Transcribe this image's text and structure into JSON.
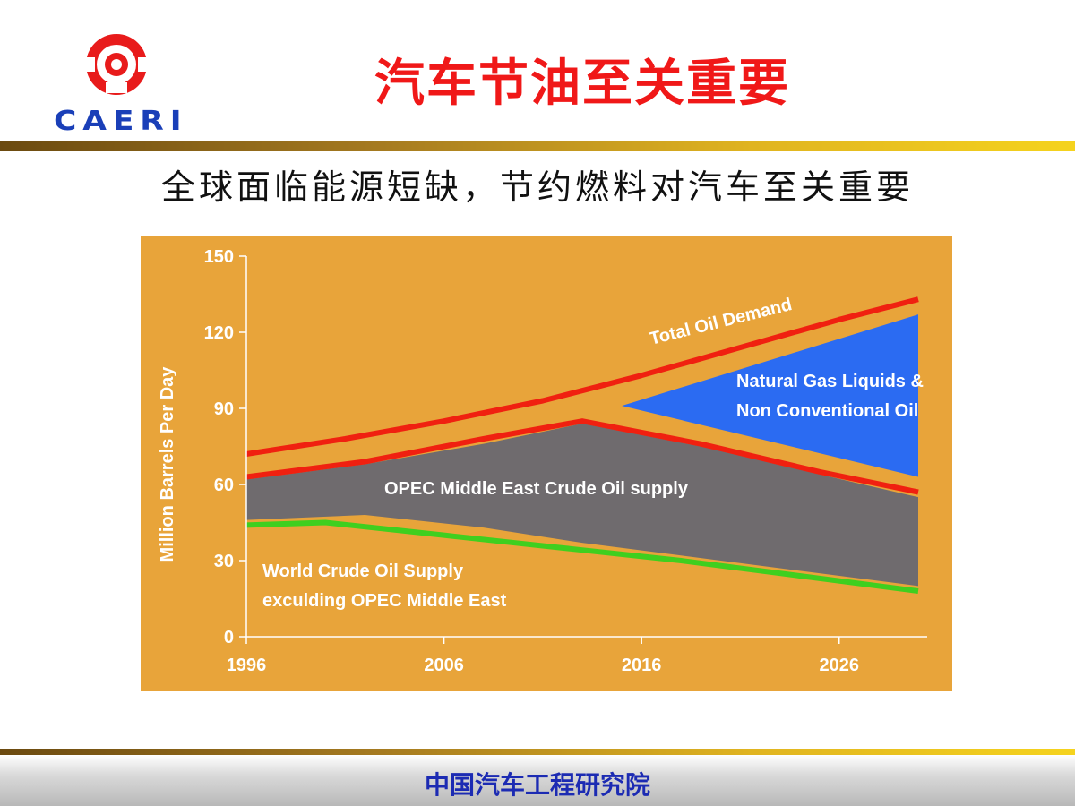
{
  "header": {
    "logo_text": "CAERI",
    "title": "汽车节油至关重要"
  },
  "subtitle": "全球面临能源短缺，节约燃料对汽车至关重要",
  "footer": {
    "org_name": "中国汽车工程研究院"
  },
  "colors": {
    "title_red": "#f01818",
    "logo_blue": "#1a3fb8",
    "chart_background": "#e8a43a",
    "demand_line": "#f02010",
    "opec_area": "#6f6b6e",
    "ngl_area": "#2b6bf2",
    "world_supply_line": "#3fcf1f"
  },
  "chart_data": {
    "type": "area",
    "title": "",
    "xlabel": "",
    "ylabel": "Million Barrels Per Day",
    "xlim": [
      1996,
      2030
    ],
    "ylim": [
      0,
      150
    ],
    "x_ticks": [
      1996,
      2006,
      2016,
      2026
    ],
    "y_ticks": [
      0,
      30,
      60,
      90,
      120,
      150
    ],
    "grid": false,
    "series": [
      {
        "name": "Total Oil Demand",
        "kind": "line",
        "x": [
          1996,
          2001,
          2006,
          2011,
          2016,
          2021,
          2026,
          2030
        ],
        "values": [
          72,
          78,
          85,
          93,
          103,
          114,
          125,
          133
        ]
      },
      {
        "name": "Upper OPEC boundary",
        "kind": "line",
        "x": [
          1996,
          2002,
          2008,
          2013,
          2019,
          2025,
          2030
        ],
        "values": [
          63,
          69,
          78,
          85,
          76,
          65,
          57
        ]
      },
      {
        "name": "World Crude Oil Supply exculding OPEC Middle East",
        "kind": "line",
        "x": [
          1996,
          2000,
          2006,
          2012,
          2018,
          2024,
          2030
        ],
        "values": [
          44,
          45,
          40,
          35,
          30,
          24,
          18
        ]
      },
      {
        "name": "OPEC Middle East Crude Oil supply",
        "kind": "area",
        "x": [
          1996,
          2002,
          2008,
          2013,
          2019,
          2025,
          2030
        ],
        "upper": [
          62,
          68,
          76,
          84,
          75,
          64,
          55
        ],
        "lower": [
          46,
          48,
          43,
          37,
          31,
          25,
          20
        ]
      },
      {
        "name": "Natural Gas Liquids & Non Conventional Oil",
        "kind": "area",
        "x": [
          2015,
          2030
        ],
        "upper": [
          91,
          127
        ],
        "lower": [
          91,
          63
        ]
      }
    ],
    "annotations": [
      "Total Oil Demand",
      "Natural Gas Liquids &",
      "Non Conventional Oil",
      "OPEC Middle East Crude Oil supply",
      "World Crude Oil Supply",
      "exculding OPEC Middle East"
    ]
  }
}
